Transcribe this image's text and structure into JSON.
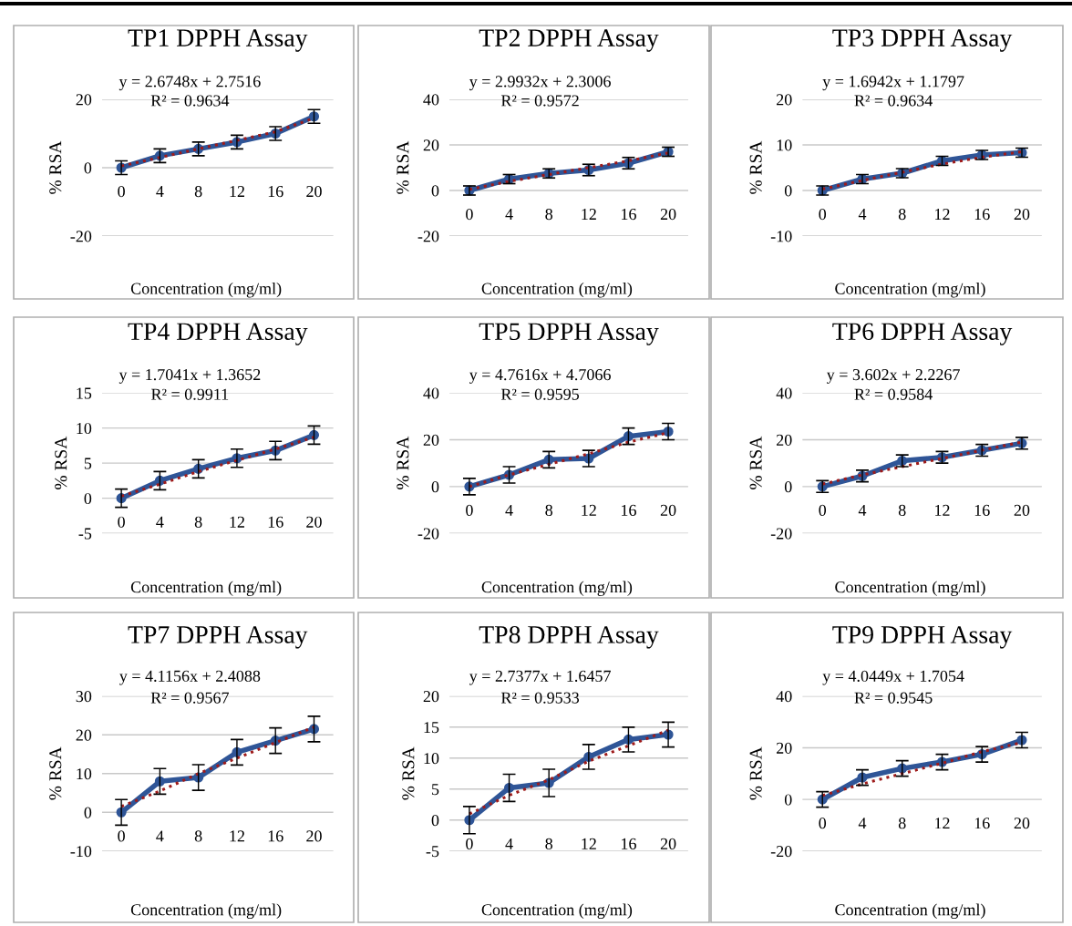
{
  "chart_data": [
    {
      "type": "line",
      "title": "TP1 DPPH Assay",
      "xlabel": "Concentration (mg/ml)",
      "ylabel": "% RSA",
      "categories": [
        "0",
        "4",
        "8",
        "12",
        "16",
        "20"
      ],
      "series": [
        {
          "color": "#2f5597",
          "values": [
            0,
            3.5,
            5.5,
            7.5,
            10,
            15
          ],
          "errors": [
            2,
            2,
            2,
            2,
            2,
            2
          ],
          "marker": "circle",
          "line_style": "solid"
        },
        {
          "type": "line",
          "color": "#9e1b1b",
          "values": [
            0.5,
            3,
            5.5,
            8,
            10.5,
            14.5
          ],
          "marker": "none",
          "line_style": "dotted"
        }
      ],
      "ylim": [
        -20,
        20
      ],
      "yticks": [
        -20,
        0,
        20
      ],
      "grid": "y",
      "annotations": [
        "y = 2.6748x + 2.7516",
        "R² = 0.9634"
      ]
    },
    {
      "type": "line",
      "title": "TP2 DPPH Assay",
      "xlabel": "Concentration (mg/ml)",
      "ylabel": "% RSA",
      "categories": [
        "0",
        "4",
        "8",
        "12",
        "16",
        "20"
      ],
      "series": [
        {
          "color": "#2f5597",
          "values": [
            0,
            5,
            7.5,
            9,
            12,
            17
          ],
          "errors": [
            2,
            2,
            2,
            2.5,
            2.5,
            2
          ],
          "marker": "circle",
          "line_style": "solid"
        },
        {
          "type": "line",
          "color": "#9e1b1b",
          "values": [
            0.5,
            4,
            7,
            10,
            13,
            16.5
          ],
          "marker": "none",
          "line_style": "dotted"
        }
      ],
      "ylim": [
        -20,
        40
      ],
      "yticks": [
        -20,
        0,
        20,
        40
      ],
      "grid": "y",
      "annotations": [
        "y = 2.9932x + 2.3006",
        "R² = 0.9572"
      ]
    },
    {
      "type": "line",
      "title": "TP3 DPPH Assay",
      "xlabel": "Concentration (mg/ml)",
      "ylabel": "% RSA",
      "categories": [
        "0",
        "4",
        "8",
        "12",
        "16",
        "20"
      ],
      "series": [
        {
          "color": "#2f5597",
          "values": [
            0,
            2.5,
            3.8,
            6.5,
            7.8,
            8.3
          ],
          "errors": [
            1,
            1,
            1,
            1,
            1,
            1
          ],
          "marker": "circle",
          "line_style": "solid"
        },
        {
          "type": "line",
          "color": "#9e1b1b",
          "values": [
            0.3,
            2.2,
            4,
            5.8,
            7.3,
            8.5
          ],
          "marker": "none",
          "line_style": "dotted"
        }
      ],
      "ylim": [
        -10,
        20
      ],
      "yticks": [
        -10,
        0,
        10,
        20
      ],
      "grid": "y",
      "annotations": [
        "y = 1.6942x + 1.1797",
        "R² = 0.9634"
      ]
    },
    {
      "type": "line",
      "title": "TP4 DPPH Assay",
      "xlabel": "Concentration (mg/ml)",
      "ylabel": "% RSA",
      "categories": [
        "0",
        "4",
        "8",
        "12",
        "16",
        "20"
      ],
      "series": [
        {
          "color": "#2f5597",
          "values": [
            0,
            2.5,
            4.2,
            5.7,
            6.8,
            9
          ],
          "errors": [
            1.3,
            1.3,
            1.3,
            1.3,
            1.3,
            1.3
          ],
          "marker": "circle",
          "line_style": "solid"
        },
        {
          "type": "line",
          "color": "#9e1b1b",
          "values": [
            0.3,
            2,
            3.8,
            5.4,
            7,
            8.7
          ],
          "marker": "none",
          "line_style": "dotted"
        }
      ],
      "ylim": [
        -5,
        15
      ],
      "yticks": [
        -5,
        0,
        5,
        10,
        15
      ],
      "grid": "y",
      "annotations": [
        "y = 1.7041x + 1.3652",
        "R² = 0.9911"
      ]
    },
    {
      "type": "line",
      "title": "TP5 DPPH Assay",
      "xlabel": "Concentration (mg/ml)",
      "ylabel": "% RSA",
      "categories": [
        "0",
        "4",
        "8",
        "12",
        "16",
        "20"
      ],
      "series": [
        {
          "color": "#2f5597",
          "values": [
            0,
            5,
            11.5,
            12,
            21.5,
            23.5
          ],
          "errors": [
            3.5,
            3.5,
            3.5,
            3.5,
            3.5,
            3.5
          ],
          "marker": "circle",
          "line_style": "solid"
        },
        {
          "type": "line",
          "color": "#9e1b1b",
          "values": [
            0,
            5,
            9.5,
            14,
            19,
            23
          ],
          "marker": "none",
          "line_style": "dotted"
        }
      ],
      "ylim": [
        -20,
        40
      ],
      "yticks": [
        -20,
        0,
        20,
        40
      ],
      "grid": "y",
      "annotations": [
        "y = 4.7616x + 4.7066",
        "R² = 0.9595"
      ]
    },
    {
      "type": "line",
      "title": "TP6 DPPH Assay",
      "xlabel": "Concentration (mg/ml)",
      "ylabel": "% RSA",
      "categories": [
        "0",
        "4",
        "8",
        "12",
        "16",
        "20"
      ],
      "series": [
        {
          "color": "#2f5597",
          "values": [
            0,
            4.5,
            11,
            12.5,
            15.5,
            18.5
          ],
          "errors": [
            2.5,
            2.5,
            2.5,
            2.5,
            2.5,
            2.5
          ],
          "marker": "circle",
          "line_style": "solid"
        },
        {
          "type": "line",
          "color": "#9e1b1b",
          "values": [
            1,
            5,
            8.5,
            12,
            15.5,
            19
          ],
          "marker": "none",
          "line_style": "dotted"
        }
      ],
      "ylim": [
        -20,
        40
      ],
      "yticks": [
        -20,
        0,
        20,
        40
      ],
      "grid": "y",
      "annotations": [
        "y = 3.602x + 2.2267",
        "R² = 0.9584"
      ]
    },
    {
      "type": "line",
      "title": "TP7 DPPH Assay",
      "xlabel": "Concentration (mg/ml)",
      "ylabel": "% RSA",
      "categories": [
        "0",
        "4",
        "8",
        "12",
        "16",
        "20"
      ],
      "series": [
        {
          "color": "#2f5597",
          "values": [
            0,
            8,
            9,
            15.5,
            18.5,
            21.5
          ],
          "errors": [
            3.3,
            3.3,
            3.3,
            3.3,
            3.3,
            3.3
          ],
          "marker": "circle",
          "line_style": "solid"
        },
        {
          "type": "line",
          "color": "#9e1b1b",
          "values": [
            1.5,
            5.5,
            10,
            14,
            18,
            22
          ],
          "marker": "none",
          "line_style": "dotted"
        }
      ],
      "ylim": [
        -10,
        30
      ],
      "yticks": [
        -10,
        0,
        10,
        20,
        30
      ],
      "grid": "y",
      "annotations": [
        "y = 4.1156x + 2.4088",
        "R² = 0.9567"
      ]
    },
    {
      "type": "line",
      "title": "TP8 DPPH Assay",
      "xlabel": "Concentration (mg/ml)",
      "ylabel": "% RSA",
      "categories": [
        "0",
        "4",
        "8",
        "12",
        "16",
        "20"
      ],
      "series": [
        {
          "color": "#2f5597",
          "values": [
            0,
            5.2,
            6,
            10.2,
            13,
            13.8
          ],
          "errors": [
            2.2,
            2.2,
            2.2,
            2,
            2,
            2
          ],
          "marker": "circle",
          "line_style": "solid"
        },
        {
          "type": "line",
          "color": "#9e1b1b",
          "values": [
            1,
            4,
            6.5,
            9.5,
            12,
            14.5
          ],
          "marker": "none",
          "line_style": "dotted"
        }
      ],
      "ylim": [
        -5,
        20
      ],
      "yticks": [
        -5,
        0,
        5,
        10,
        15,
        20
      ],
      "grid": "y",
      "annotations": [
        "y = 2.7377x + 1.6457",
        "R² = 0.9533"
      ]
    },
    {
      "type": "line",
      "title": "TP9 DPPH Assay",
      "xlabel": "Concentration (mg/ml)",
      "ylabel": "% RSA",
      "categories": [
        "0",
        "4",
        "8",
        "12",
        "16",
        "20"
      ],
      "series": [
        {
          "color": "#2f5597",
          "values": [
            0,
            8.5,
            12,
            14.5,
            17.5,
            23
          ],
          "errors": [
            3,
            3,
            3,
            3,
            3,
            3
          ],
          "marker": "circle",
          "line_style": "solid"
        },
        {
          "type": "line",
          "color": "#9e1b1b",
          "values": [
            1.5,
            6,
            10,
            14,
            18.5,
            22
          ],
          "marker": "none",
          "line_style": "dotted"
        }
      ],
      "ylim": [
        -20,
        40
      ],
      "yticks": [
        -20,
        0,
        20,
        40
      ],
      "grid": "y",
      "annotations": [
        "y = 4.0449x + 1.7054",
        "R² = 0.9545"
      ]
    }
  ]
}
